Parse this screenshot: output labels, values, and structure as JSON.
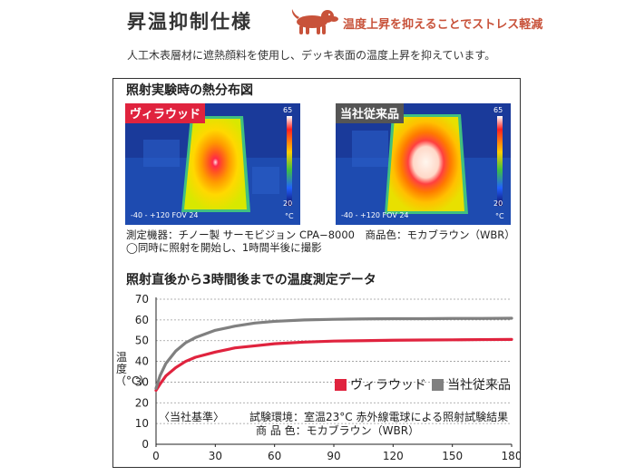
{
  "header": {
    "title": "昇温抑制仕様",
    "tagline": "温度上昇を抑えることでストレス軽減",
    "description": "人工木表層材に遮熱顔料を使用し、デッキ表面の温度上昇を抑えています。",
    "dog_icon": "dog-icon",
    "accent_color": "#c8523a"
  },
  "thermal_section": {
    "title": "照射実験時の熱分布図",
    "images": [
      {
        "badge": "ヴィラウッド",
        "badge_color": "#e0233e",
        "scale_max": "65",
        "scale_min": "20",
        "unit": "°C",
        "fov": "-40 - +120 FOV 24"
      },
      {
        "badge": "当社従来品",
        "badge_color": "#555555",
        "scale_max": "65",
        "scale_min": "20",
        "unit": "°C",
        "fov": "-40 - +120 FOV 24"
      }
    ],
    "caption_line1": "測定機器：チノー製 サーモビジョン CPA−8000　商品色：モカブラウン（WBR）",
    "caption_line2": "◯同時に照射を開始し、1時間半後に撮影"
  },
  "chart_section": {
    "title": "照射直後から3時間後までの温度測定データ",
    "notes": {
      "basis": "〈当社基準〉",
      "line1": "試験環境：室温23°C 赤外線電球による照射試験結果",
      "line2": "商 品 色：モカブラウン（WBR）"
    }
  },
  "chart_data": {
    "type": "line",
    "title": "照射直後から3時間後までの温度測定データ",
    "xlabel": "",
    "ylabel": "温度（°C）",
    "xlim": [
      0,
      180
    ],
    "ylim": [
      0,
      70
    ],
    "x_ticks": [
      0,
      30,
      60,
      90,
      120,
      150,
      180
    ],
    "y_ticks": [
      0,
      10,
      20,
      30,
      40,
      50,
      60,
      70
    ],
    "grid": "horizontal",
    "legend_position": "bottom-right",
    "series": [
      {
        "name": "ヴィラウッド",
        "color": "#e0233e",
        "x": [
          0,
          2,
          5,
          10,
          15,
          20,
          30,
          40,
          50,
          60,
          75,
          90,
          105,
          120,
          135,
          150,
          165,
          180
        ],
        "values": [
          26,
          29,
          33,
          37,
          40,
          42,
          44.5,
          46.5,
          47.5,
          48.5,
          49.3,
          49.8,
          50,
          50.2,
          50.3,
          50.4,
          50.5,
          50.6
        ]
      },
      {
        "name": "当社従来品",
        "color": "#808080",
        "x": [
          0,
          2,
          5,
          10,
          15,
          20,
          30,
          40,
          50,
          60,
          75,
          90,
          105,
          120,
          135,
          150,
          165,
          180
        ],
        "values": [
          27,
          33,
          39,
          45,
          49,
          51.5,
          55,
          57,
          58.5,
          59.3,
          60,
          60.3,
          60.5,
          60.6,
          60.6,
          60.7,
          60.7,
          60.8
        ]
      }
    ]
  }
}
